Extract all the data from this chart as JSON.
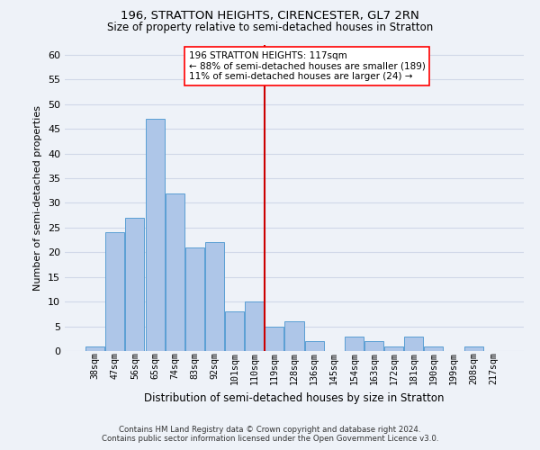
{
  "title": "196, STRATTON HEIGHTS, CIRENCESTER, GL7 2RN",
  "subtitle": "Size of property relative to semi-detached houses in Stratton",
  "xlabel": "Distribution of semi-detached houses by size in Stratton",
  "ylabel": "Number of semi-detached properties",
  "footer1": "Contains HM Land Registry data © Crown copyright and database right 2024.",
  "footer2": "Contains public sector information licensed under the Open Government Licence v3.0.",
  "annotation_line1": "196 STRATTON HEIGHTS: 117sqm",
  "annotation_line2": "← 88% of semi-detached houses are smaller (189)",
  "annotation_line3": "11% of semi-detached houses are larger (24) →",
  "bar_labels": [
    "38sqm",
    "47sqm",
    "56sqm",
    "65sqm",
    "74sqm",
    "83sqm",
    "92sqm",
    "101sqm",
    "110sqm",
    "119sqm",
    "128sqm",
    "136sqm",
    "145sqm",
    "154sqm",
    "163sqm",
    "172sqm",
    "181sqm",
    "190sqm",
    "199sqm",
    "208sqm",
    "217sqm"
  ],
  "bar_values": [
    1,
    24,
    27,
    47,
    32,
    21,
    22,
    8,
    10,
    5,
    6,
    2,
    0,
    3,
    2,
    1,
    3,
    1,
    0,
    1,
    0
  ],
  "bar_color": "#aec6e8",
  "bar_edge_color": "#5a9fd4",
  "grid_color": "#d0d8e8",
  "background_color": "#eef2f8",
  "vline_color": "#cc0000",
  "ylim": [
    0,
    62
  ],
  "yticks": [
    0,
    5,
    10,
    15,
    20,
    25,
    30,
    35,
    40,
    45,
    50,
    55,
    60
  ]
}
